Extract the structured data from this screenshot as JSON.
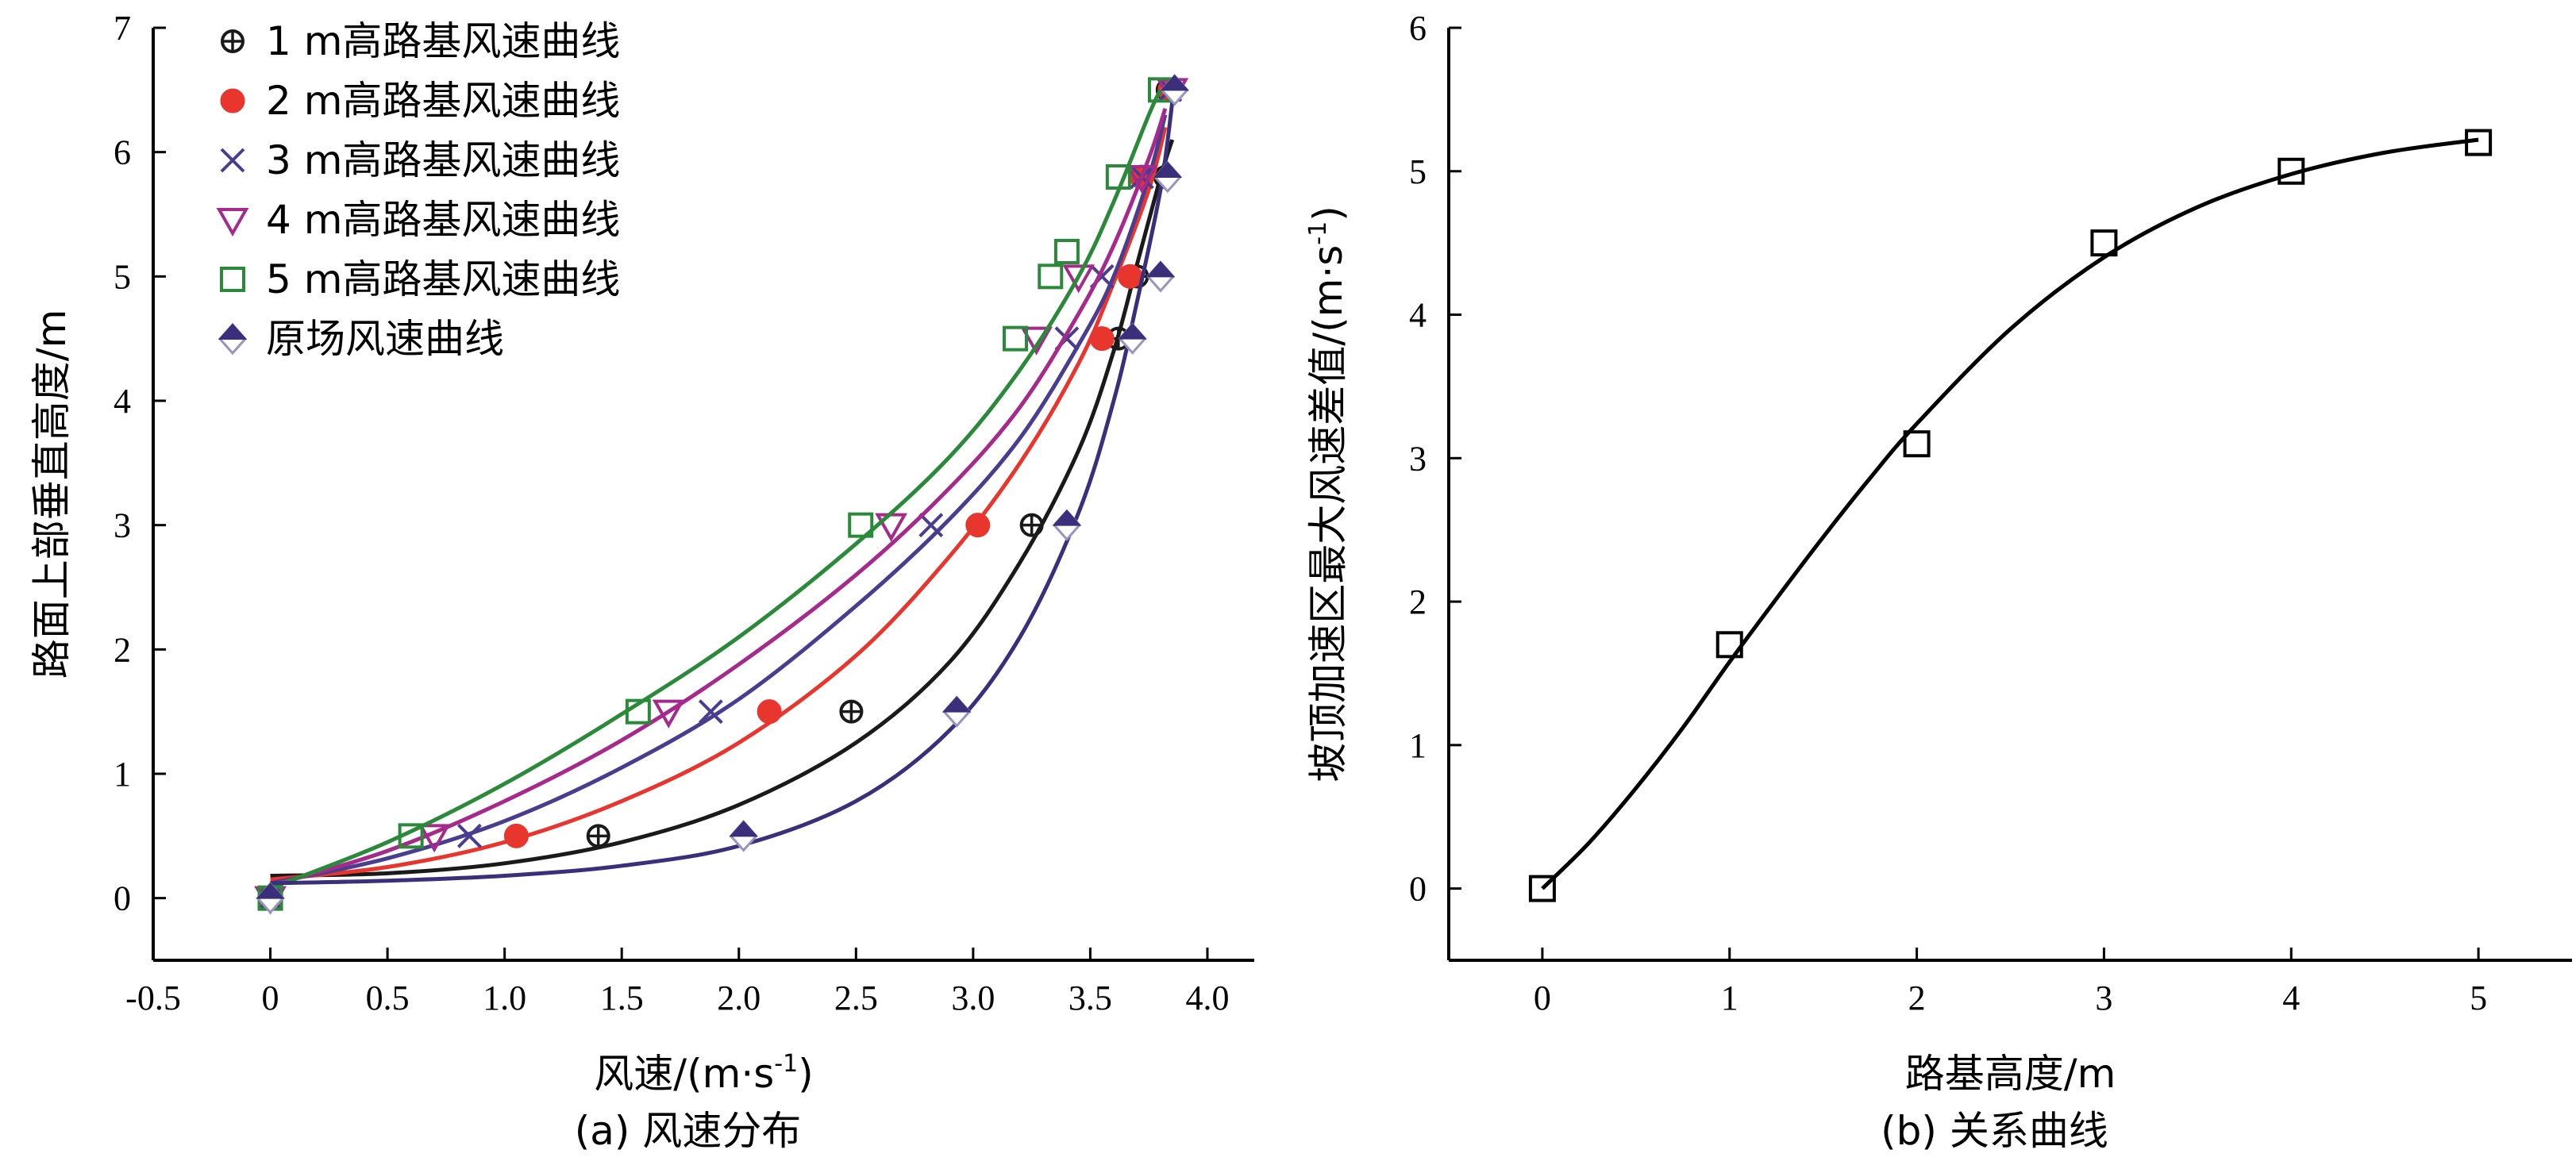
{
  "chart_data": [
    {
      "id": "a",
      "type": "scatter",
      "caption": "(a) 风速分布",
      "xlabel": "风速/(m·s",
      "xlabel_sup": "-1",
      "xlabel_tail": ")",
      "ylabel": "路面上部垂直高度/m",
      "xlim": [
        -0.5,
        4.2
      ],
      "ylim": [
        -0.5,
        7
      ],
      "xticks": [
        -0.5,
        0,
        0.5,
        1.0,
        1.5,
        2.0,
        2.5,
        3.0,
        3.5,
        4.0
      ],
      "xtick_labels": [
        "-0.5",
        "0",
        "0.5",
        "1.0",
        "1.5",
        "2.0",
        "2.5",
        "3.0",
        "3.5",
        "4.0"
      ],
      "yticks": [
        0,
        1,
        2,
        3,
        4,
        5,
        6,
        7
      ],
      "ytick_labels": [
        "0",
        "1",
        "2",
        "3",
        "4",
        "5",
        "6",
        "7"
      ],
      "grid": false,
      "legend_position": "top-left",
      "series": [
        {
          "name": "1 m高路基风速曲线",
          "marker": "circle-plus",
          "color": "#1a1a1a",
          "points": [
            [
              0,
              0
            ],
            [
              1.4,
              0.5
            ],
            [
              2.48,
              1.5
            ],
            [
              3.25,
              3.0
            ],
            [
              3.62,
              4.5
            ],
            [
              3.7,
              5.0
            ],
            [
              3.82,
              5.8
            ],
            [
              3.83,
              6.5
            ]
          ],
          "fit": [
            [
              0,
              0.18
            ],
            [
              0.5,
              0.2
            ],
            [
              1.0,
              0.28
            ],
            [
              1.5,
              0.45
            ],
            [
              2.0,
              0.75
            ],
            [
              2.5,
              1.25
            ],
            [
              2.9,
              1.9
            ],
            [
              3.2,
              2.7
            ],
            [
              3.45,
              3.6
            ],
            [
              3.6,
              4.4
            ],
            [
              3.7,
              5.1
            ],
            [
              3.8,
              5.8
            ],
            [
              3.85,
              6.1
            ]
          ]
        },
        {
          "name": "2 m高路基风速曲线",
          "marker": "filled-circle",
          "color": "#e8352e",
          "points": [
            [
              0,
              0
            ],
            [
              1.05,
              0.5
            ],
            [
              2.13,
              1.5
            ],
            [
              3.02,
              3.0
            ],
            [
              3.55,
              4.5
            ],
            [
              3.67,
              5.0
            ],
            [
              3.72,
              5.8
            ],
            [
              3.84,
              6.5
            ]
          ],
          "fit": [
            [
              0,
              0.15
            ],
            [
              0.5,
              0.25
            ],
            [
              1.0,
              0.45
            ],
            [
              1.5,
              0.78
            ],
            [
              2.0,
              1.25
            ],
            [
              2.5,
              1.95
            ],
            [
              2.9,
              2.75
            ],
            [
              3.2,
              3.5
            ],
            [
              3.45,
              4.3
            ],
            [
              3.6,
              4.95
            ],
            [
              3.75,
              5.7
            ],
            [
              3.82,
              6.2
            ]
          ]
        },
        {
          "name": "3 m高路基风速曲线",
          "marker": "cross",
          "color": "#4a3d8f",
          "points": [
            [
              0,
              0
            ],
            [
              0.85,
              0.5
            ],
            [
              1.88,
              1.5
            ],
            [
              2.82,
              3.0
            ],
            [
              3.4,
              4.5
            ],
            [
              3.55,
              5.0
            ],
            [
              3.72,
              5.8
            ],
            [
              3.84,
              6.5
            ]
          ],
          "fit": [
            [
              0,
              0.12
            ],
            [
              0.5,
              0.32
            ],
            [
              1.0,
              0.62
            ],
            [
              1.5,
              1.05
            ],
            [
              2.0,
              1.6
            ],
            [
              2.5,
              2.35
            ],
            [
              2.9,
              3.05
            ],
            [
              3.2,
              3.7
            ],
            [
              3.45,
              4.45
            ],
            [
              3.6,
              5.0
            ],
            [
              3.75,
              5.8
            ],
            [
              3.82,
              6.3
            ]
          ]
        },
        {
          "name": "4 m高路基风速曲线",
          "marker": "triangle-down",
          "color": "#a62a8c",
          "points": [
            [
              0,
              0
            ],
            [
              0.7,
              0.5
            ],
            [
              1.7,
              1.5
            ],
            [
              2.65,
              3.0
            ],
            [
              3.27,
              4.5
            ],
            [
              3.45,
              5.0
            ],
            [
              3.72,
              5.8
            ],
            [
              3.85,
              6.5
            ]
          ],
          "fit": [
            [
              0,
              0.1
            ],
            [
              0.5,
              0.38
            ],
            [
              1.0,
              0.78
            ],
            [
              1.5,
              1.27
            ],
            [
              2.0,
              1.88
            ],
            [
              2.5,
              2.6
            ],
            [
              2.9,
              3.3
            ],
            [
              3.2,
              3.95
            ],
            [
              3.45,
              4.7
            ],
            [
              3.6,
              5.25
            ],
            [
              3.75,
              5.95
            ],
            [
              3.82,
              6.35
            ]
          ]
        },
        {
          "name": "5 m高路基风速曲线",
          "marker": "square",
          "color": "#2a8a3a",
          "points": [
            [
              0,
              0
            ],
            [
              0.6,
              0.5
            ],
            [
              1.57,
              1.5
            ],
            [
              2.52,
              3.0
            ],
            [
              3.18,
              4.5
            ],
            [
              3.33,
              5.0
            ],
            [
              3.4,
              5.2
            ],
            [
              3.62,
              5.8
            ],
            [
              3.8,
              6.5
            ]
          ],
          "fit": [
            [
              0,
              0.08
            ],
            [
              0.5,
              0.45
            ],
            [
              1.0,
              0.92
            ],
            [
              1.5,
              1.48
            ],
            [
              2.0,
              2.1
            ],
            [
              2.5,
              2.85
            ],
            [
              2.9,
              3.55
            ],
            [
              3.2,
              4.25
            ],
            [
              3.45,
              5.0
            ],
            [
              3.6,
              5.6
            ],
            [
              3.75,
              6.3
            ],
            [
              3.8,
              6.5
            ]
          ]
        },
        {
          "name": "原场风速曲线",
          "marker": "half-diamond",
          "color": "#3a2f7a",
          "points": [
            [
              0,
              0
            ],
            [
              2.02,
              0.5
            ],
            [
              2.93,
              1.5
            ],
            [
              3.4,
              3.0
            ],
            [
              3.68,
              4.5
            ],
            [
              3.8,
              5.0
            ],
            [
              3.83,
              5.8
            ],
            [
              3.86,
              6.5
            ]
          ],
          "fit": [
            [
              0,
              0.12
            ],
            [
              0.5,
              0.14
            ],
            [
              1.0,
              0.18
            ],
            [
              1.5,
              0.26
            ],
            [
              2.0,
              0.42
            ],
            [
              2.5,
              0.78
            ],
            [
              2.9,
              1.35
            ],
            [
              3.2,
              2.1
            ],
            [
              3.45,
              3.1
            ],
            [
              3.6,
              4.0
            ],
            [
              3.7,
              4.8
            ],
            [
              3.8,
              5.7
            ],
            [
              3.85,
              6.4
            ]
          ]
        }
      ]
    },
    {
      "id": "b",
      "type": "scatter",
      "caption": "(b) 关系曲线",
      "xlabel": "路基高度/m",
      "ylabel": "坡顶加速区最大风速差值/(m·s",
      "ylabel_sup": "-1",
      "ylabel_tail": ")",
      "xlim": [
        -0.5,
        5.5
      ],
      "ylim": [
        -0.5,
        6
      ],
      "xticks": [
        0,
        1,
        2,
        3,
        4,
        5
      ],
      "xtick_labels": [
        "0",
        "1",
        "2",
        "3",
        "4",
        "5"
      ],
      "yticks": [
        0,
        1,
        2,
        3,
        4,
        5,
        6
      ],
      "ytick_labels": [
        "0",
        "1",
        "2",
        "3",
        "4",
        "5",
        "6"
      ],
      "grid": false,
      "series": [
        {
          "marker": "open-square",
          "color": "#000000",
          "points": [
            [
              0,
              0
            ],
            [
              1,
              1.7
            ],
            [
              2,
              3.1
            ],
            [
              3,
              4.5
            ],
            [
              4,
              5.0
            ],
            [
              5,
              5.2
            ]
          ],
          "fit": [
            [
              0,
              0.0
            ],
            [
              0.25,
              0.32
            ],
            [
              0.5,
              0.7
            ],
            [
              0.75,
              1.12
            ],
            [
              1.0,
              1.58
            ],
            [
              1.25,
              2.02
            ],
            [
              1.5,
              2.45
            ],
            [
              1.75,
              2.86
            ],
            [
              2.0,
              3.24
            ],
            [
              2.5,
              3.9
            ],
            [
              3.0,
              4.4
            ],
            [
              3.5,
              4.75
            ],
            [
              4.0,
              4.98
            ],
            [
              4.5,
              5.13
            ],
            [
              5.0,
              5.22
            ]
          ]
        }
      ]
    }
  ]
}
